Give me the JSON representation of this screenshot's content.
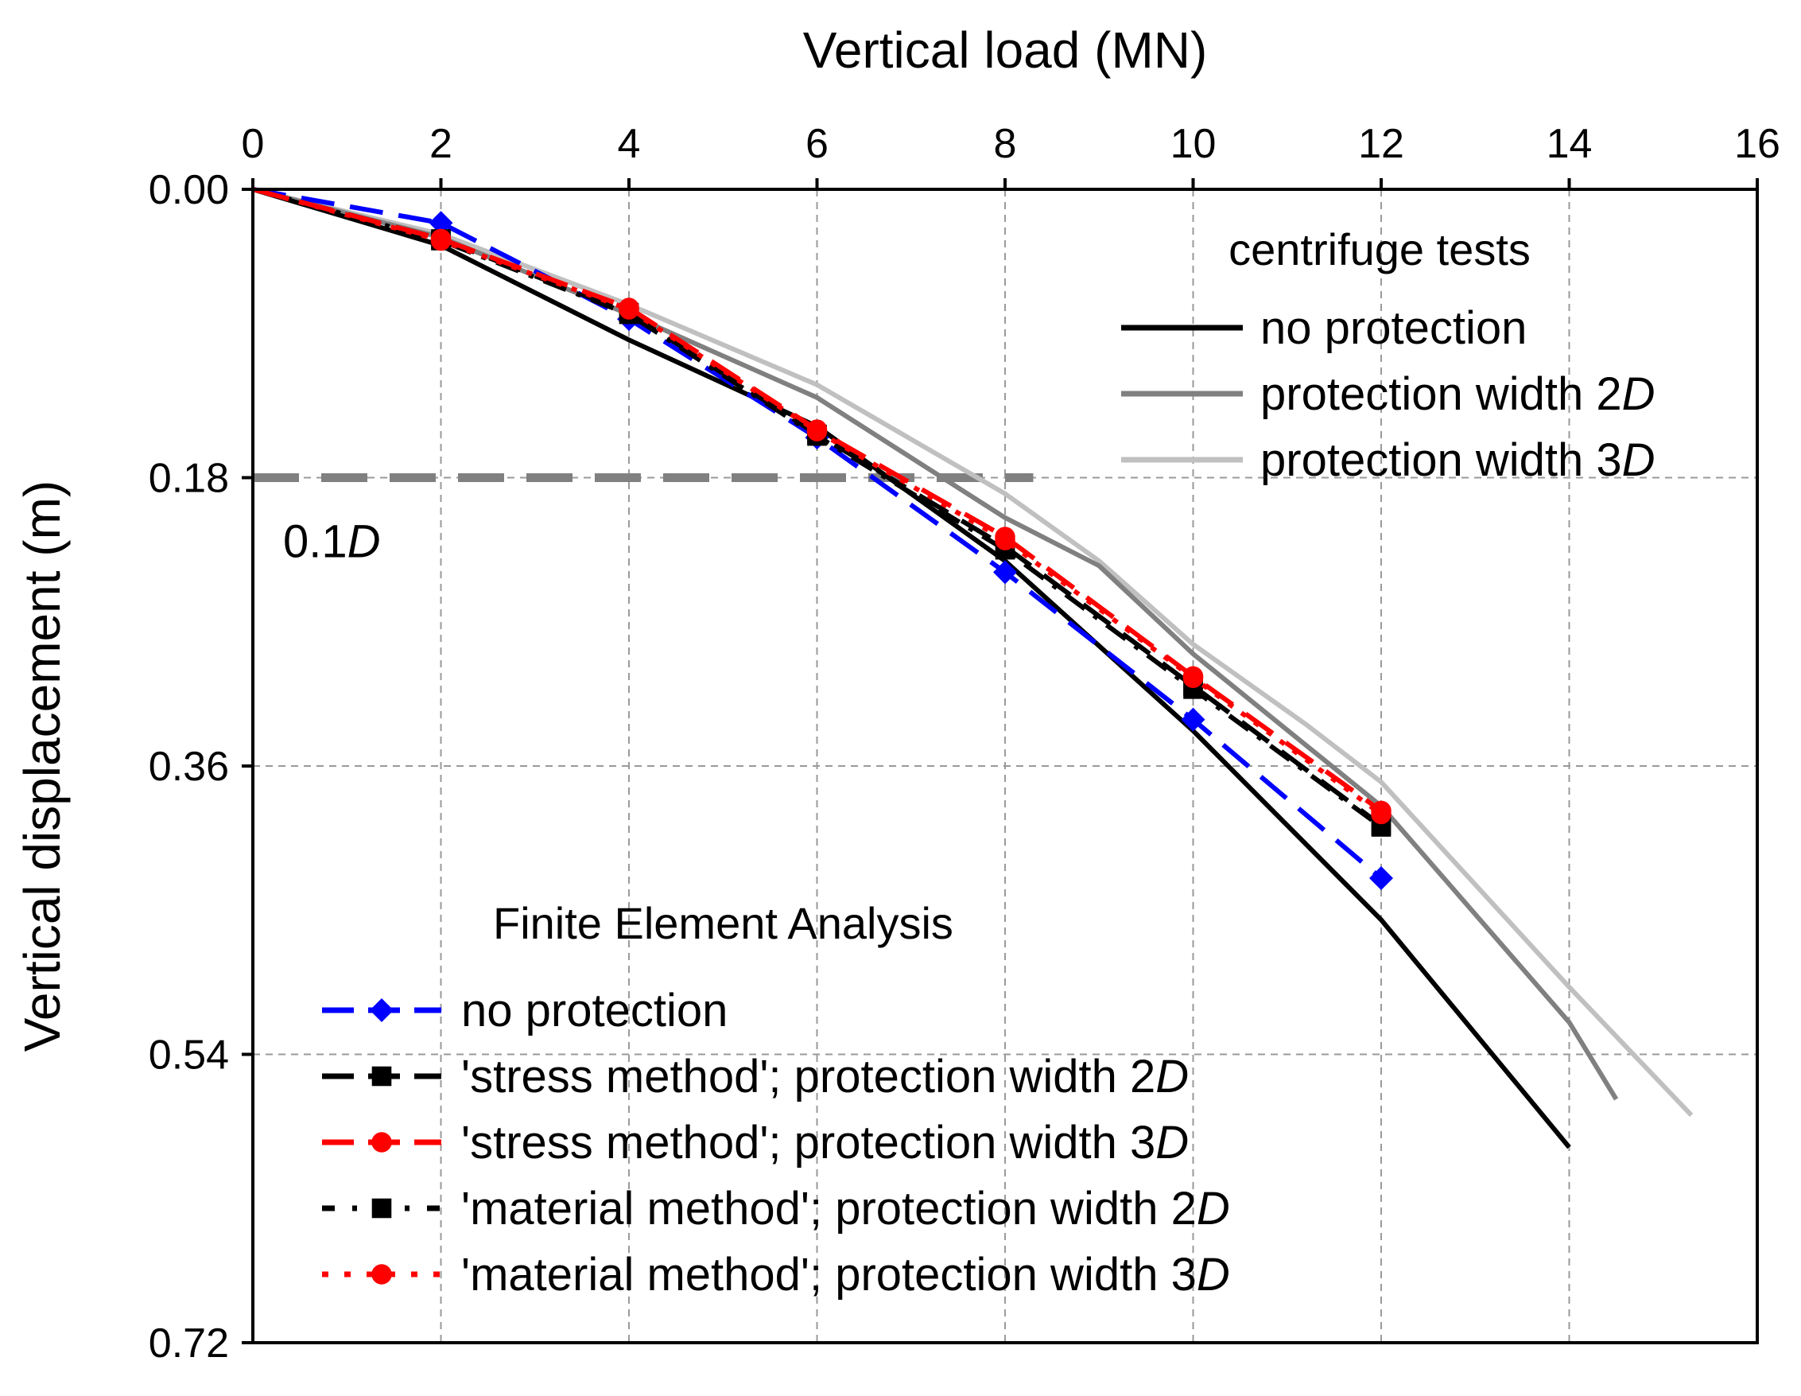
{
  "chart_data": {
    "type": "line",
    "xlabel": "Vertical load (MN)",
    "ylabel": "Vertical displacement (m)",
    "xlim": [
      0,
      16
    ],
    "ylim": [
      0,
      0.72
    ],
    "y_inverted": true,
    "x_axis_position": "top",
    "grid": true,
    "x_ticks": [
      0,
      2,
      4,
      6,
      8,
      10,
      12,
      14,
      16
    ],
    "x_tick_labels": [
      "0",
      "2",
      "4",
      "6",
      "8",
      "10",
      "12",
      "14",
      "16"
    ],
    "y_ticks": [
      0,
      0.18,
      0.36,
      0.54,
      0.72
    ],
    "y_tick_labels": [
      "0.00",
      "0.18",
      "0.36",
      "0.54",
      "0.72"
    ],
    "reference_line": {
      "y": 0.18,
      "x_range": [
        0,
        8.3
      ],
      "label_prefix": "0.1",
      "label_italic": "D"
    },
    "centrifuge_legend_title": "centrifuge tests",
    "fea_legend_title": "Finite Element Analysis",
    "series": [
      {
        "group": "centrifuge",
        "name": "no protection",
        "name_prefix": "no protection",
        "name_italic": "",
        "color": "#000000",
        "dash": "solid",
        "marker": "none",
        "x": [
          0,
          2,
          4,
          6,
          8,
          10,
          12,
          14
        ],
        "y": [
          0,
          0.035,
          0.094,
          0.148,
          0.232,
          0.338,
          0.456,
          0.598
        ]
      },
      {
        "group": "centrifuge",
        "name": "protection width 2D",
        "name_prefix": "protection width 2",
        "name_italic": "D",
        "color": "#808080",
        "dash": "solid",
        "marker": "none",
        "x": [
          0,
          2,
          4,
          6,
          8,
          9,
          10,
          12,
          14,
          14.5
        ],
        "y": [
          0,
          0.03,
          0.078,
          0.13,
          0.205,
          0.235,
          0.29,
          0.385,
          0.52,
          0.568
        ]
      },
      {
        "group": "centrifuge",
        "name": "protection width 3D",
        "name_prefix": "protection width 3",
        "name_italic": "D",
        "color": "#c0c0c0",
        "dash": "solid",
        "marker": "none",
        "x": [
          0,
          2,
          4,
          6,
          8,
          9,
          10,
          11.2,
          12,
          14,
          15.3
        ],
        "y": [
          0,
          0.028,
          0.072,
          0.122,
          0.19,
          0.232,
          0.284,
          0.334,
          0.37,
          0.498,
          0.578
        ]
      },
      {
        "group": "fea",
        "name": "no protection",
        "name_prefix": "no protection",
        "name_italic": "",
        "color": "#0000ff",
        "dash": "dash",
        "marker": "diamond",
        "x": [
          0,
          2,
          4,
          6,
          8,
          10,
          12
        ],
        "y": [
          0,
          0.021,
          0.081,
          0.155,
          0.239,
          0.331,
          0.43
        ]
      },
      {
        "group": "fea",
        "name": "'stress method'; protection width 2D",
        "name_prefix": "'stress method'; protection width 2",
        "name_italic": "D",
        "color": "#000000",
        "dash": "dash",
        "marker": "square",
        "x": [
          0,
          2,
          4,
          6,
          8,
          10,
          12
        ],
        "y": [
          0,
          0.031,
          0.077,
          0.153,
          0.223,
          0.31,
          0.397
        ]
      },
      {
        "group": "fea",
        "name": "'stress method'; protection width 3D",
        "name_prefix": "'stress method'; protection width 3",
        "name_italic": "D",
        "color": "#ff0000",
        "dash": "dash",
        "marker": "circle",
        "x": [
          0,
          2,
          4,
          6,
          8,
          10,
          12
        ],
        "y": [
          0,
          0.031,
          0.074,
          0.15,
          0.217,
          0.304,
          0.388
        ]
      },
      {
        "group": "fea",
        "name": "'material method'; protection width 2D",
        "name_prefix": "'material method'; protection width 2",
        "name_italic": "D",
        "color": "#000000",
        "dash": "dashdot",
        "marker": "square",
        "x": [
          0,
          2,
          4,
          6,
          8,
          10,
          12
        ],
        "y": [
          0,
          0.032,
          0.078,
          0.154,
          0.225,
          0.312,
          0.398
        ]
      },
      {
        "group": "fea",
        "name": "'material method'; protection width 3D",
        "name_prefix": "'material method'; protection width 3",
        "name_italic": "D",
        "color": "#ff0000",
        "dash": "dot",
        "marker": "circle",
        "x": [
          0,
          2,
          4,
          6,
          8,
          10,
          12
        ],
        "y": [
          0,
          0.032,
          0.075,
          0.151,
          0.219,
          0.305,
          0.39
        ]
      }
    ]
  }
}
